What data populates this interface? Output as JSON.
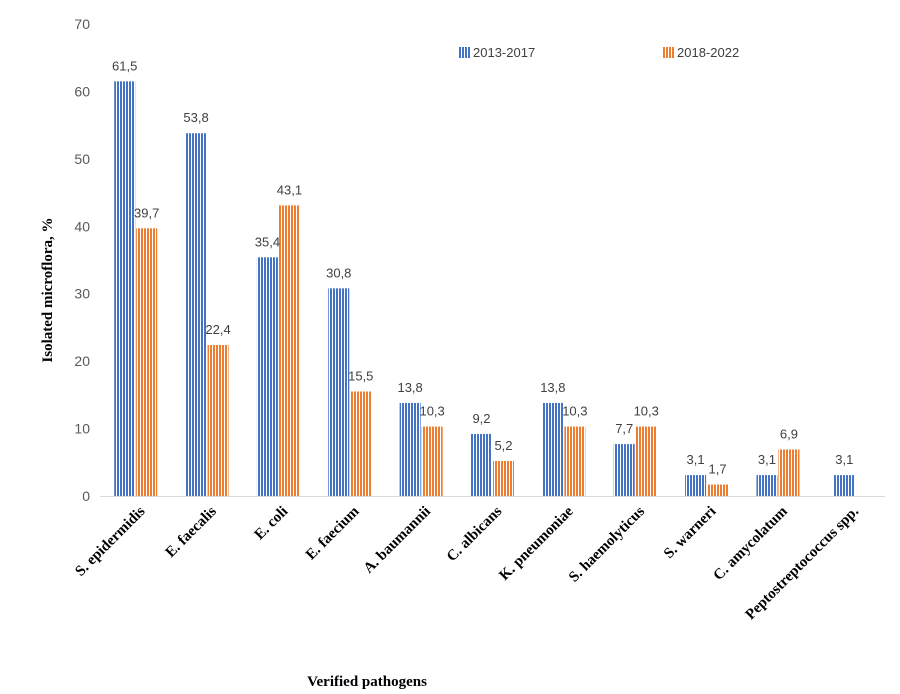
{
  "chart_data": {
    "type": "bar",
    "title": "",
    "xlabel": "Verified pathogens",
    "ylabel": "Isolated microflora, %",
    "ylim": [
      0,
      70
    ],
    "yticks": [
      0,
      10,
      20,
      30,
      40,
      50,
      60,
      70
    ],
    "grid": false,
    "legend_position": "top-right",
    "categories": [
      "S. epidermidis",
      "E. faecalis",
      "E. coli",
      "E. faecium",
      "A. baumannii",
      "C. albicans",
      "K. pneumoniae",
      "S. haemolyticus",
      "S. warneri",
      "C. amycolatum",
      "Peptostreptococcus spp."
    ],
    "series": [
      {
        "name": "2013-2017",
        "color": "#4472C4",
        "values": [
          61.5,
          53.8,
          35.4,
          30.8,
          13.8,
          9.2,
          13.8,
          7.7,
          3.1,
          3.1,
          3.1
        ],
        "labels": [
          "61,5",
          "53,8",
          "35,4",
          "30,8",
          "13,8",
          "9,2",
          "13,8",
          "7,7",
          "3,1",
          "3,1",
          "3,1"
        ]
      },
      {
        "name": "2018-2022",
        "color": "#ED7D31",
        "values": [
          39.7,
          22.4,
          43.1,
          15.5,
          10.3,
          5.2,
          10.3,
          10.3,
          1.7,
          6.9,
          null
        ],
        "labels": [
          "39,7",
          "22,4",
          "43,1",
          "15,5",
          "10,3",
          "5,2",
          "10,3",
          "10,3",
          "1,7",
          "6,9",
          null
        ]
      }
    ]
  }
}
